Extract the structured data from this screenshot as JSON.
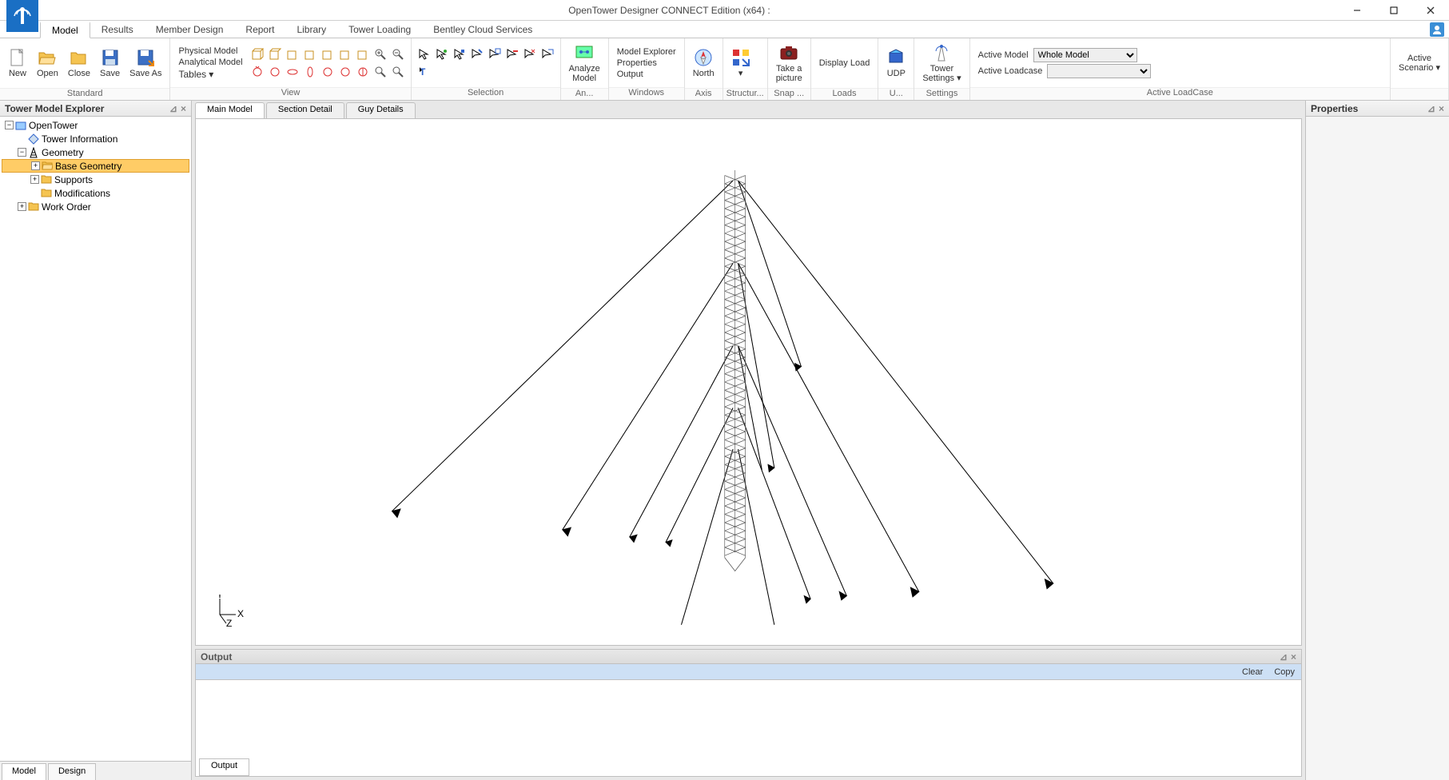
{
  "window": {
    "title": "OpenTower Designer CONNECT Edition (x64) :"
  },
  "menutabs": [
    "Model",
    "Results",
    "Member Design",
    "Report",
    "Library",
    "Tower Loading",
    "Bentley Cloud Services"
  ],
  "menutabs_active": 0,
  "ribbon": {
    "groups": {
      "standard": {
        "label": "Standard",
        "buttons": [
          "New",
          "Open",
          "Close",
          "Save",
          "Save As"
        ]
      },
      "view": {
        "label": "View",
        "text_items": [
          "Physical Model",
          "Analytical Model",
          "Tables"
        ]
      },
      "selection": {
        "label": "Selection"
      },
      "analyze": {
        "label": "An...",
        "button": "Analyze\nModel"
      },
      "windows": {
        "label": "Windows",
        "items": [
          "Model Explorer",
          "Properties",
          "Output"
        ]
      },
      "axis": {
        "label": "Axis",
        "button": "North"
      },
      "structure": {
        "label": "Structur..."
      },
      "snap": {
        "label": "Snap ...",
        "button": "Take a\npicture"
      },
      "loads": {
        "label": "Loads",
        "button": "Display Load"
      },
      "udp": {
        "label": "U...",
        "button": "UDP"
      },
      "settings": {
        "label": "Settings",
        "button": "Tower\nSettings"
      },
      "activeloadcase": {
        "label": "Active LoadCase",
        "model_label": "Active Model",
        "model_value": "Whole Model",
        "loadcase_label": "Active Loadcase",
        "loadcase_value": ""
      },
      "scenario": {
        "button": "Active\nScenario"
      }
    }
  },
  "explorer": {
    "title": "Tower Model Explorer",
    "tree": [
      {
        "level": 0,
        "exp": "-",
        "icon": "root",
        "label": "OpenTower"
      },
      {
        "level": 1,
        "exp": "",
        "icon": "info",
        "label": "Tower Information"
      },
      {
        "level": 1,
        "exp": "-",
        "icon": "geom",
        "label": "Geometry"
      },
      {
        "level": 2,
        "exp": "+",
        "icon": "folder-sel",
        "label": "Base Geometry",
        "selected": true
      },
      {
        "level": 2,
        "exp": "+",
        "icon": "folder",
        "label": "Supports"
      },
      {
        "level": 2,
        "exp": "",
        "icon": "folder",
        "label": "Modifications"
      },
      {
        "level": 1,
        "exp": "+",
        "icon": "folder",
        "label": "Work Order"
      }
    ],
    "bottom_tabs": [
      "Model",
      "Design"
    ],
    "bottom_active": 0
  },
  "doc_tabs": [
    "Main Model",
    "Section Detail",
    "Guy Details"
  ],
  "doc_active": 0,
  "properties": {
    "title": "Properties"
  },
  "output": {
    "title": "Output",
    "toolbar": [
      "Clear",
      "Copy"
    ],
    "tab": "Output"
  },
  "axis": {
    "x": "X",
    "y": "Y",
    "z": "Z"
  },
  "colors": {
    "selected_bg": "#ffcc66",
    "accent": "#1a6fc4",
    "ribbon_hover": "#e8f0fb"
  }
}
